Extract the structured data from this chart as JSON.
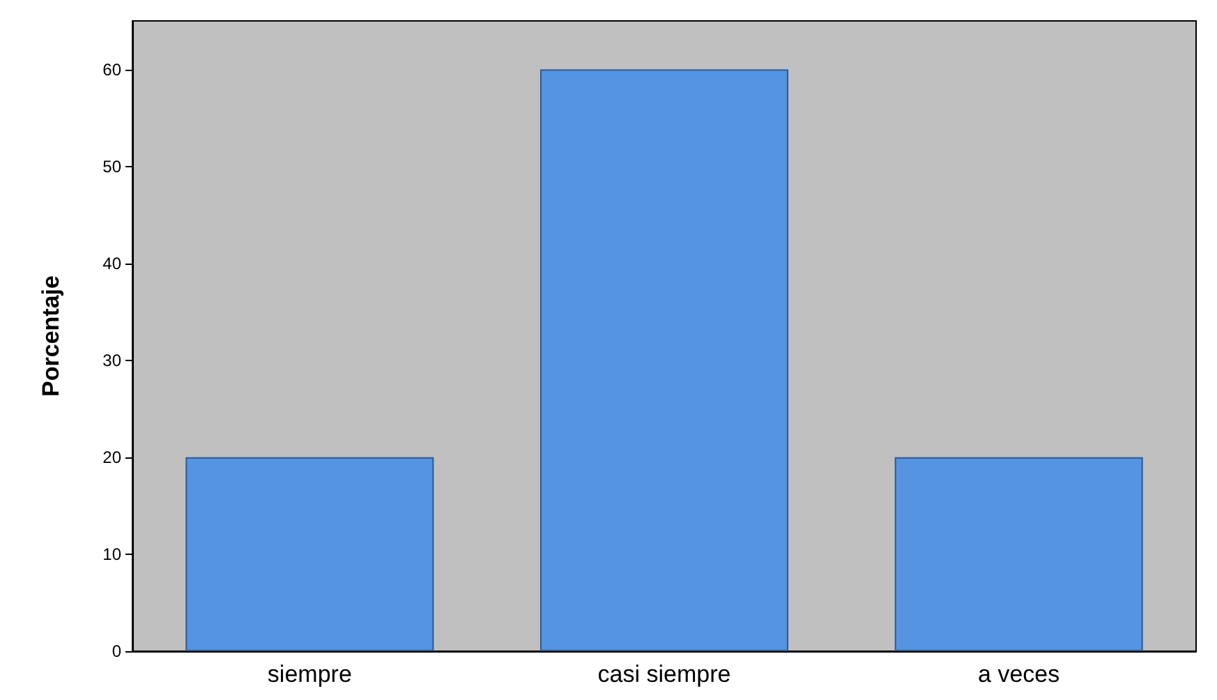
{
  "chart_data": {
    "type": "bar",
    "ylabel": "Porcentaje",
    "categories": [
      "siempre",
      "casi siempre",
      "a veces"
    ],
    "values": [
      20,
      60,
      20
    ],
    "color": "#5594e0",
    "ylim": [
      0,
      65
    ],
    "yticks": [
      0,
      10,
      20,
      30,
      40,
      50,
      60
    ],
    "grid": false
  }
}
